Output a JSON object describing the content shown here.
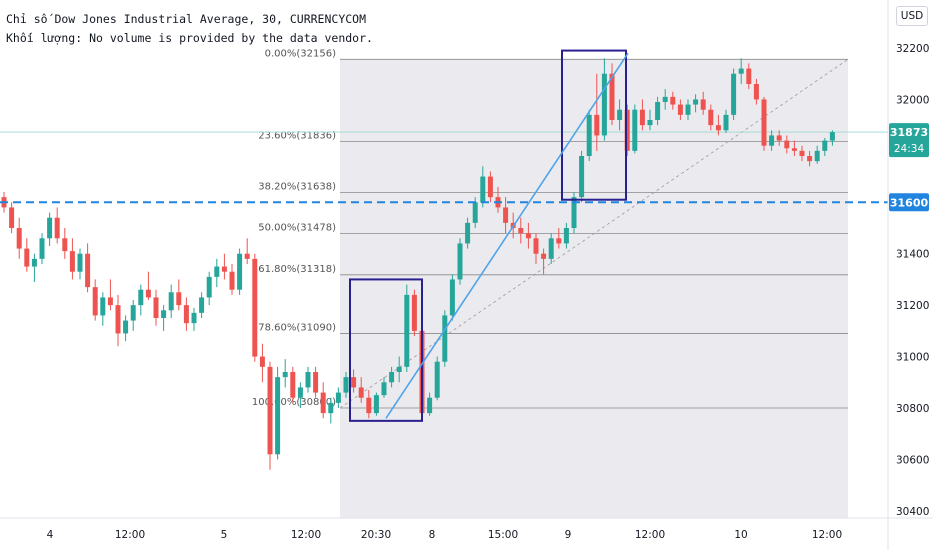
{
  "header": {
    "title": "Chỉ số Dow Jones Industrial Average, 30, CURRENCYCOM",
    "volume_note": "Khối lượng: No volume is provided by the data vendor."
  },
  "currency_button": "USD",
  "colors": {
    "up": "#26a69a",
    "down": "#ef5350",
    "trend": "#4fa3e8",
    "box": "#2a1f8f",
    "level_line": "#2185e0",
    "fib_bg": "#ebebef"
  },
  "chart_data": {
    "type": "candlestick",
    "symbol": "Dow Jones Industrial Average",
    "interval": "30",
    "source": "CURRENCYCOM",
    "ylim": [
      30400,
      32260
    ],
    "y_ticks": [
      30400,
      30600,
      30800,
      31000,
      31200,
      31400,
      31600,
      31800,
      32000,
      32200
    ],
    "x_ticks": [
      "4",
      "12:00",
      "5",
      "12:00",
      "20:30",
      "8",
      "15:00",
      "9",
      "12:00",
      "10",
      "12:00"
    ],
    "candles_ohlc": [
      [
        31620,
        31640,
        31560,
        31580
      ],
      [
        31580,
        31600,
        31480,
        31500
      ],
      [
        31500,
        31540,
        31380,
        31420
      ],
      [
        31420,
        31460,
        31330,
        31350
      ],
      [
        31350,
        31400,
        31290,
        31380
      ],
      [
        31380,
        31480,
        31360,
        31460
      ],
      [
        31460,
        31560,
        31430,
        31540
      ],
      [
        31540,
        31580,
        31440,
        31460
      ],
      [
        31460,
        31500,
        31380,
        31410
      ],
      [
        31410,
        31460,
        31300,
        31330
      ],
      [
        31330,
        31420,
        31300,
        31400
      ],
      [
        31400,
        31440,
        31250,
        31270
      ],
      [
        31270,
        31300,
        31140,
        31160
      ],
      [
        31160,
        31250,
        31120,
        31230
      ],
      [
        31230,
        31300,
        31180,
        31200
      ],
      [
        31200,
        31240,
        31040,
        31090
      ],
      [
        31090,
        31160,
        31060,
        31140
      ],
      [
        31140,
        31220,
        31100,
        31200
      ],
      [
        31200,
        31280,
        31160,
        31260
      ],
      [
        31260,
        31330,
        31220,
        31230
      ],
      [
        31230,
        31260,
        31120,
        31150
      ],
      [
        31150,
        31200,
        31100,
        31180
      ],
      [
        31180,
        31280,
        31150,
        31250
      ],
      [
        31250,
        31300,
        31180,
        31200
      ],
      [
        31200,
        31230,
        31100,
        31130
      ],
      [
        31130,
        31190,
        31100,
        31170
      ],
      [
        31170,
        31250,
        31150,
        31230
      ],
      [
        31230,
        31330,
        31200,
        31310
      ],
      [
        31310,
        31380,
        31270,
        31350
      ],
      [
        31350,
        31400,
        31300,
        31330
      ],
      [
        31330,
        31360,
        31240,
        31260
      ],
      [
        31260,
        31420,
        31240,
        31400
      ],
      [
        31400,
        31460,
        31360,
        31380
      ],
      [
        31380,
        31400,
        30980,
        31000
      ],
      [
        31000,
        31050,
        30900,
        30960
      ],
      [
        30960,
        30980,
        30560,
        30620
      ],
      [
        30620,
        30960,
        30600,
        30920
      ],
      [
        30920,
        30990,
        30880,
        30940
      ],
      [
        30940,
        30960,
        30820,
        30840
      ],
      [
        30840,
        30900,
        30800,
        30880
      ],
      [
        30880,
        30960,
        30860,
        30940
      ],
      [
        30940,
        30960,
        30840,
        30860
      ],
      [
        30860,
        30900,
        30760,
        30780
      ],
      [
        30780,
        30840,
        30740,
        30820
      ],
      [
        30820,
        30880,
        30800,
        30860
      ],
      [
        30860,
        30940,
        30840,
        30920
      ],
      [
        30920,
        30950,
        30860,
        30880
      ],
      [
        30880,
        30920,
        30820,
        30840
      ],
      [
        30840,
        30870,
        30760,
        30780
      ],
      [
        30780,
        30860,
        30770,
        30850
      ],
      [
        30850,
        30920,
        30840,
        30900
      ],
      [
        30900,
        30960,
        30880,
        30940
      ],
      [
        30940,
        31000,
        30900,
        30960
      ],
      [
        30960,
        31280,
        30940,
        31240
      ],
      [
        31240,
        31260,
        31080,
        31100
      ],
      [
        31100,
        31120,
        30760,
        30780
      ],
      [
        30780,
        30860,
        30770,
        30840
      ],
      [
        30840,
        31000,
        30830,
        30980
      ],
      [
        30980,
        31180,
        30960,
        31160
      ],
      [
        31160,
        31320,
        31140,
        31300
      ],
      [
        31300,
        31460,
        31280,
        31440
      ],
      [
        31440,
        31540,
        31420,
        31520
      ],
      [
        31520,
        31620,
        31500,
        31600
      ],
      [
        31600,
        31740,
        31580,
        31700
      ],
      [
        31700,
        31720,
        31600,
        31620
      ],
      [
        31620,
        31660,
        31560,
        31580
      ],
      [
        31580,
        31620,
        31480,
        31520
      ],
      [
        31520,
        31560,
        31460,
        31500
      ],
      [
        31500,
        31540,
        31440,
        31480
      ],
      [
        31480,
        31520,
        31420,
        31460
      ],
      [
        31460,
        31480,
        31360,
        31400
      ],
      [
        31400,
        31420,
        31320,
        31380
      ],
      [
        31380,
        31480,
        31360,
        31460
      ],
      [
        31460,
        31500,
        31420,
        31440
      ],
      [
        31440,
        31520,
        31420,
        31500
      ],
      [
        31500,
        31640,
        31480,
        31620
      ],
      [
        31620,
        31800,
        31600,
        31780
      ],
      [
        31780,
        31960,
        31760,
        31940
      ],
      [
        31940,
        32100,
        31800,
        31860
      ],
      [
        31860,
        32160,
        31840,
        32100
      ],
      [
        32100,
        32140,
        31900,
        31920
      ],
      [
        31920,
        32000,
        31880,
        31960
      ],
      [
        31960,
        31980,
        31780,
        31800
      ],
      [
        31800,
        31980,
        31790,
        31960
      ],
      [
        31960,
        32000,
        31880,
        31900
      ],
      [
        31900,
        31960,
        31880,
        31920
      ],
      [
        31920,
        32010,
        31900,
        31990
      ],
      [
        31990,
        32040,
        31960,
        32010
      ],
      [
        32010,
        32030,
        31960,
        31980
      ],
      [
        31980,
        32000,
        31920,
        31940
      ],
      [
        31940,
        32000,
        31920,
        31980
      ],
      [
        31980,
        32020,
        31950,
        32000
      ],
      [
        32000,
        32030,
        31940,
        31960
      ],
      [
        31960,
        31980,
        31880,
        31900
      ],
      [
        31900,
        31940,
        31860,
        31880
      ],
      [
        31880,
        31960,
        31870,
        31940
      ],
      [
        31940,
        32120,
        31920,
        32100
      ],
      [
        32100,
        32160,
        32060,
        32120
      ],
      [
        32120,
        32140,
        32040,
        32060
      ],
      [
        32060,
        32080,
        31980,
        32000
      ],
      [
        32000,
        32010,
        31800,
        31820
      ],
      [
        31820,
        31880,
        31800,
        31860
      ],
      [
        31860,
        31880,
        31820,
        31840
      ],
      [
        31840,
        31860,
        31790,
        31810
      ],
      [
        31810,
        31840,
        31780,
        31800
      ],
      [
        31800,
        31820,
        31760,
        31780
      ],
      [
        31780,
        31800,
        31740,
        31760
      ],
      [
        31760,
        31820,
        31750,
        31800
      ],
      [
        31800,
        31850,
        31780,
        31840
      ],
      [
        31840,
        31880,
        31820,
        31873
      ]
    ],
    "last_price": 31873,
    "countdown": "24:34",
    "horizontal_level": 31600,
    "fib_retracement": {
      "levels": [
        {
          "label": "0.00%(32156)",
          "value": 32156
        },
        {
          "label": "23.60%(31836)",
          "value": 31836
        },
        {
          "label": "38.20%(31638)",
          "value": 31638
        },
        {
          "label": "50.00%(31478)",
          "value": 31478
        },
        {
          "label": "61.80%(31318)",
          "value": 31318
        },
        {
          "label": "78.60%(31090)",
          "value": 31090
        },
        {
          "label": "100.00%(30800)",
          "value": 30800
        }
      ]
    },
    "trend_line": {
      "from": 30760,
      "to": 32180
    },
    "boxes": [
      {
        "low": 30750,
        "high": 31300
      },
      {
        "low": 31610,
        "high": 32190
      }
    ]
  }
}
